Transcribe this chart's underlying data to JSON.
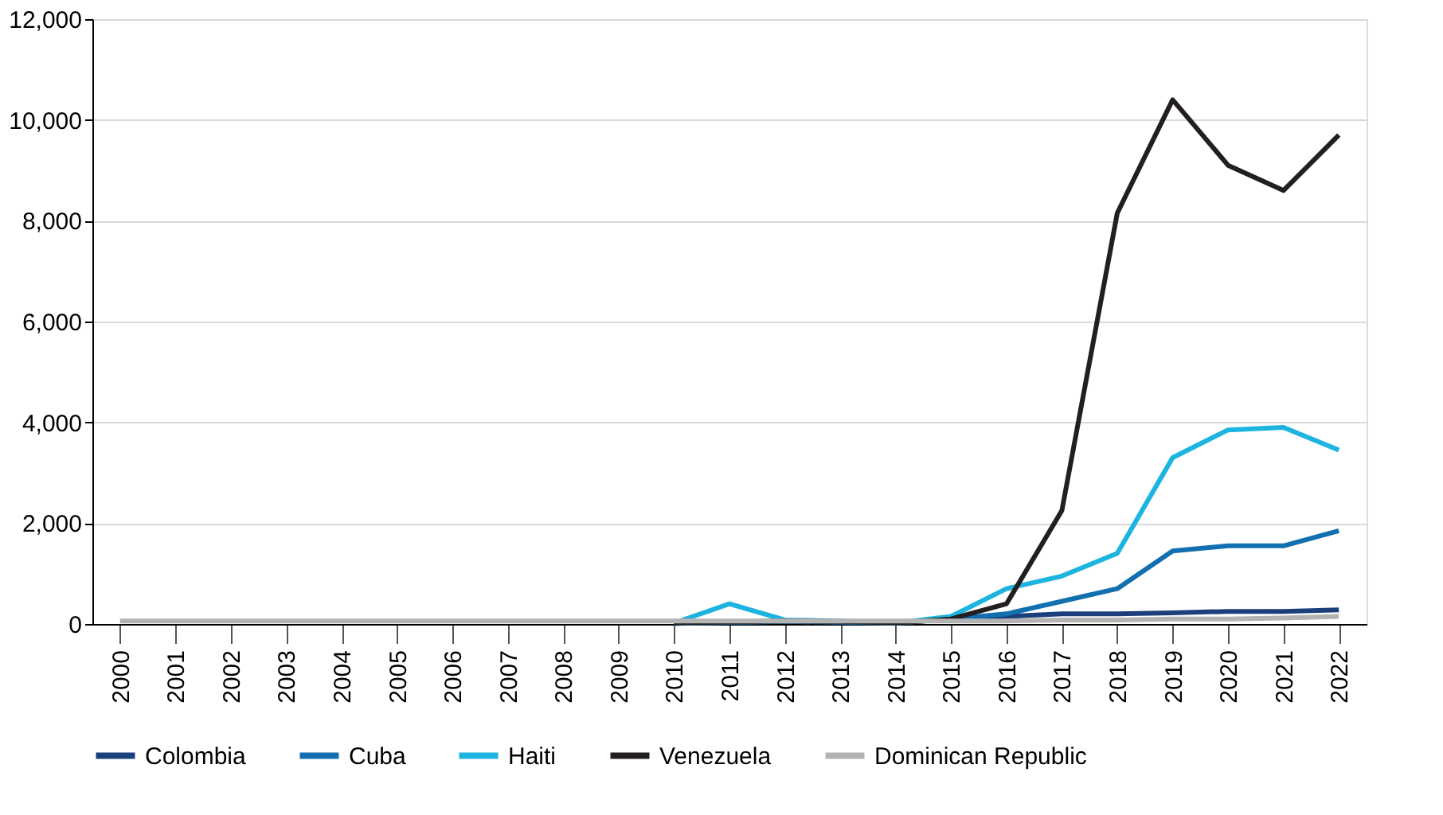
{
  "chart_data": {
    "type": "line",
    "categories": [
      "2000",
      "2001",
      "2002",
      "2003",
      "2004",
      "2005",
      "2006",
      "2007",
      "2008",
      "2009",
      "2010",
      "2011",
      "2012",
      "2013",
      "2014",
      "2015",
      "2016",
      "2017",
      "2018",
      "2019",
      "2020",
      "2021",
      "2022"
    ],
    "series": [
      {
        "name": "Colombia",
        "color": "#1a3f7a",
        "values": [
          null,
          null,
          null,
          null,
          null,
          null,
          null,
          null,
          null,
          null,
          10,
          40,
          50,
          40,
          20,
          100,
          150,
          200,
          200,
          220,
          250,
          250,
          280
        ]
      },
      {
        "name": "Cuba",
        "color": "#1270b0",
        "values": [
          null,
          null,
          null,
          null,
          null,
          null,
          null,
          null,
          null,
          null,
          10,
          30,
          50,
          40,
          20,
          100,
          200,
          450,
          700,
          1450,
          1550,
          1550,
          1850
        ]
      },
      {
        "name": "Haiti",
        "color": "#1eb4e0",
        "values": [
          null,
          null,
          null,
          null,
          null,
          null,
          null,
          null,
          null,
          null,
          20,
          400,
          80,
          60,
          20,
          150,
          700,
          950,
          1400,
          3300,
          3850,
          3900,
          3450
        ]
      },
      {
        "name": "Venezuela",
        "color": "#231f20",
        "values": [
          null,
          null,
          null,
          null,
          null,
          null,
          null,
          null,
          null,
          null,
          20,
          40,
          60,
          50,
          20,
          100,
          400,
          2250,
          8150,
          10400,
          9100,
          8600,
          9700
        ]
      },
      {
        "name": "Dominican Republic",
        "color": "#b3b3b3",
        "values": [
          60,
          60,
          60,
          60,
          60,
          60,
          60,
          60,
          60,
          60,
          60,
          60,
          60,
          60,
          60,
          60,
          60,
          80,
          80,
          100,
          100,
          120,
          150
        ]
      }
    ],
    "ylim": [
      0,
      12000
    ],
    "yticks": [
      0,
      {
        "value": 2000,
        "label": "2,000"
      },
      {
        "value": 4000,
        "label": "4,000"
      },
      {
        "value": 6000,
        "label": "6,000"
      },
      {
        "value": 8000,
        "label": "8,000"
      },
      {
        "value": 10000,
        "label": "10,000"
      },
      {
        "value": 12000,
        "label": "12,000"
      }
    ],
    "grid": "y",
    "legend": "bottom",
    "line_style": "solid",
    "marker": "none"
  }
}
